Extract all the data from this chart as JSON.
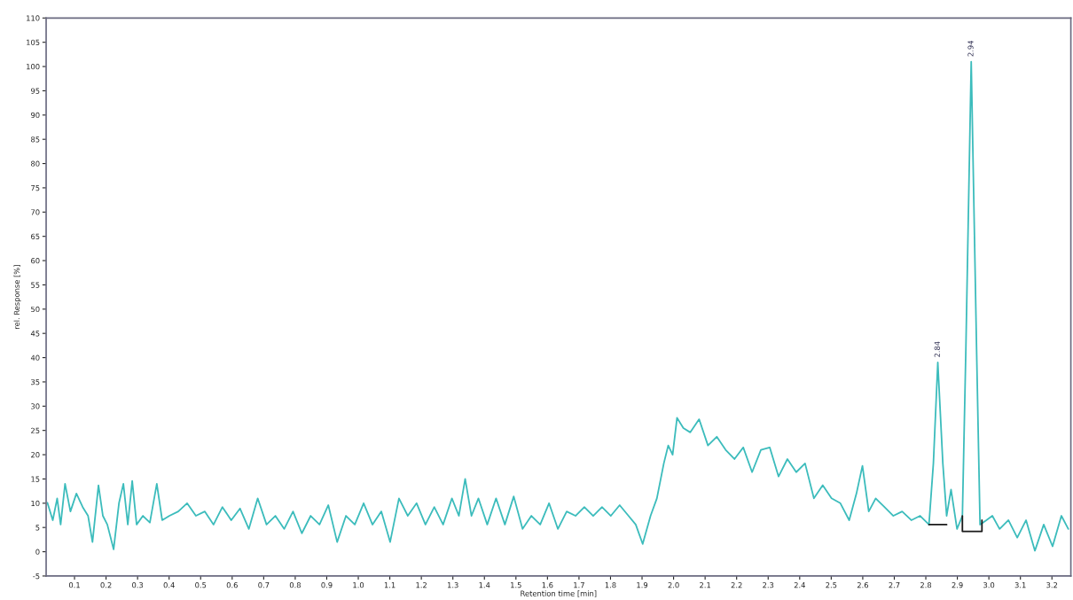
{
  "chart_data": {
    "type": "line",
    "xlabel": "Retention time [min]",
    "ylabel": "rel. Response [%]",
    "xlim": [
      0.01,
      3.26
    ],
    "ylim": [
      -5,
      110
    ],
    "xticks": [
      {
        "value": 0.1,
        "label": "0.1"
      },
      {
        "value": 0.2,
        "label": "0.2"
      },
      {
        "value": 0.3,
        "label": "0.3"
      },
      {
        "value": 0.4,
        "label": "0.4"
      },
      {
        "value": 0.5,
        "label": "0.5"
      },
      {
        "value": 0.6,
        "label": "0.6"
      },
      {
        "value": 0.7,
        "label": "0.7"
      },
      {
        "value": 0.8,
        "label": "0.8"
      },
      {
        "value": 0.9,
        "label": "0.9"
      },
      {
        "value": 1.0,
        "label": "1.0"
      },
      {
        "value": 1.1,
        "label": "1.1"
      },
      {
        "value": 1.2,
        "label": "1.2"
      },
      {
        "value": 1.3,
        "label": "1.3"
      },
      {
        "value": 1.4,
        "label": "1.4"
      },
      {
        "value": 1.5,
        "label": "1.5"
      },
      {
        "value": 1.6,
        "label": "1.6"
      },
      {
        "value": 1.7,
        "label": "1.7"
      },
      {
        "value": 1.8,
        "label": "1.8"
      },
      {
        "value": 1.9,
        "label": "1.9"
      },
      {
        "value": 2.0,
        "label": "2.0"
      },
      {
        "value": 2.1,
        "label": "2.1"
      },
      {
        "value": 2.2,
        "label": "2.2"
      },
      {
        "value": 2.3,
        "label": "2.3"
      },
      {
        "value": 2.4,
        "label": "2.4"
      },
      {
        "value": 2.5,
        "label": "2.5"
      },
      {
        "value": 2.6,
        "label": "2.6"
      },
      {
        "value": 2.7,
        "label": "2.7"
      },
      {
        "value": 2.8,
        "label": "2.8"
      },
      {
        "value": 2.9,
        "label": "2.9"
      },
      {
        "value": 3.0,
        "label": "3.0"
      },
      {
        "value": 3.1,
        "label": "3.1"
      },
      {
        "value": 3.2,
        "label": "3.2"
      }
    ],
    "yticks": [
      -5,
      0,
      5,
      10,
      15,
      20,
      25,
      30,
      35,
      40,
      45,
      50,
      55,
      60,
      65,
      70,
      75,
      80,
      85,
      90,
      95,
      100,
      105,
      110
    ],
    "grid": false,
    "series": [
      {
        "color": "#3cbcbc",
        "x": [
          0.014,
          0.031,
          0.045,
          0.056,
          0.07,
          0.087,
          0.106,
          0.126,
          0.143,
          0.157,
          0.176,
          0.19,
          0.204,
          0.224,
          0.241,
          0.255,
          0.269,
          0.283,
          0.297,
          0.317,
          0.339,
          0.361,
          0.378,
          0.401,
          0.429,
          0.457,
          0.485,
          0.513,
          0.541,
          0.569,
          0.597,
          0.625,
          0.653,
          0.681,
          0.709,
          0.737,
          0.765,
          0.793,
          0.821,
          0.849,
          0.877,
          0.905,
          0.933,
          0.961,
          0.989,
          1.017,
          1.045,
          1.073,
          1.101,
          1.129,
          1.157,
          1.185,
          1.213,
          1.241,
          1.269,
          1.297,
          1.319,
          1.339,
          1.359,
          1.381,
          1.409,
          1.437,
          1.465,
          1.493,
          1.521,
          1.549,
          1.577,
          1.605,
          1.633,
          1.661,
          1.689,
          1.717,
          1.745,
          1.773,
          1.801,
          1.829,
          1.857,
          1.88,
          1.902,
          1.927,
          1.947,
          1.969,
          1.983,
          1.997,
          2.011,
          2.031,
          2.053,
          2.081,
          2.109,
          2.137,
          2.165,
          2.193,
          2.221,
          2.249,
          2.277,
          2.305,
          2.333,
          2.361,
          2.389,
          2.417,
          2.445,
          2.473,
          2.501,
          2.529,
          2.557,
          2.58,
          2.599,
          2.619,
          2.641,
          2.669,
          2.697,
          2.725,
          2.754,
          2.782,
          2.81,
          2.824,
          2.838,
          2.854,
          2.866,
          2.88,
          2.899,
          2.916,
          2.927,
          2.944,
          2.961,
          2.972,
          2.992,
          3.011,
          3.034,
          3.062,
          3.09,
          3.118,
          3.146,
          3.174,
          3.202,
          3.23,
          3.252
        ],
        "values": [
          10.1,
          6.5,
          11,
          5.6,
          14,
          8.3,
          12,
          9.2,
          7.4,
          2,
          13.7,
          7.4,
          5.6,
          0.5,
          10,
          14,
          5.6,
          14.6,
          5.6,
          7.4,
          6,
          14,
          6.5,
          7.4,
          8.3,
          10,
          7.4,
          8.3,
          5.6,
          9.2,
          6.5,
          8.9,
          4.7,
          11,
          5.6,
          7.4,
          4.7,
          8.3,
          3.8,
          7.4,
          5.6,
          9.6,
          2,
          7.4,
          5.6,
          10,
          5.6,
          8.3,
          2,
          11,
          7.4,
          10,
          5.6,
          9.2,
          5.6,
          11,
          7.4,
          15,
          7.4,
          11,
          5.6,
          11,
          5.6,
          11.4,
          4.7,
          7.4,
          5.6,
          10,
          4.7,
          8.3,
          7.4,
          9.2,
          7.4,
          9.2,
          7.4,
          9.6,
          7.4,
          5.6,
          1.6,
          7.4,
          11,
          18.2,
          21.9,
          20,
          27.6,
          25.5,
          24.6,
          27.3,
          21.9,
          23.7,
          21,
          19.1,
          21.5,
          16.4,
          21,
          21.5,
          15.5,
          19.1,
          16.4,
          18.2,
          11,
          13.7,
          11,
          10,
          6.5,
          12,
          17.7,
          8.3,
          11,
          9.2,
          7.4,
          8.3,
          6.5,
          7.4,
          5.6,
          18.2,
          39,
          18.2,
          7.4,
          12.8,
          4.7,
          7.4,
          41.7,
          101,
          41.7,
          5.6,
          6.5,
          7.4,
          4.7,
          6.5,
          2.9,
          6.5,
          0.2,
          5.6,
          1.1,
          7.4,
          4.7
        ]
      },
      {
        "color": "#1a1a1a",
        "x": [
          2.81,
          2.866
        ],
        "values": [
          5.6,
          5.6
        ]
      },
      {
        "color": "#1a1a1a",
        "x": [
          2.916,
          2.916,
          2.978,
          2.978
        ],
        "values": [
          7.4,
          4.2,
          4.2,
          6.5
        ]
      }
    ],
    "annotations": [
      {
        "text": "2.84",
        "x": 2.838,
        "y": 39
      },
      {
        "text": "2.94",
        "x": 2.944,
        "y": 101
      }
    ]
  }
}
